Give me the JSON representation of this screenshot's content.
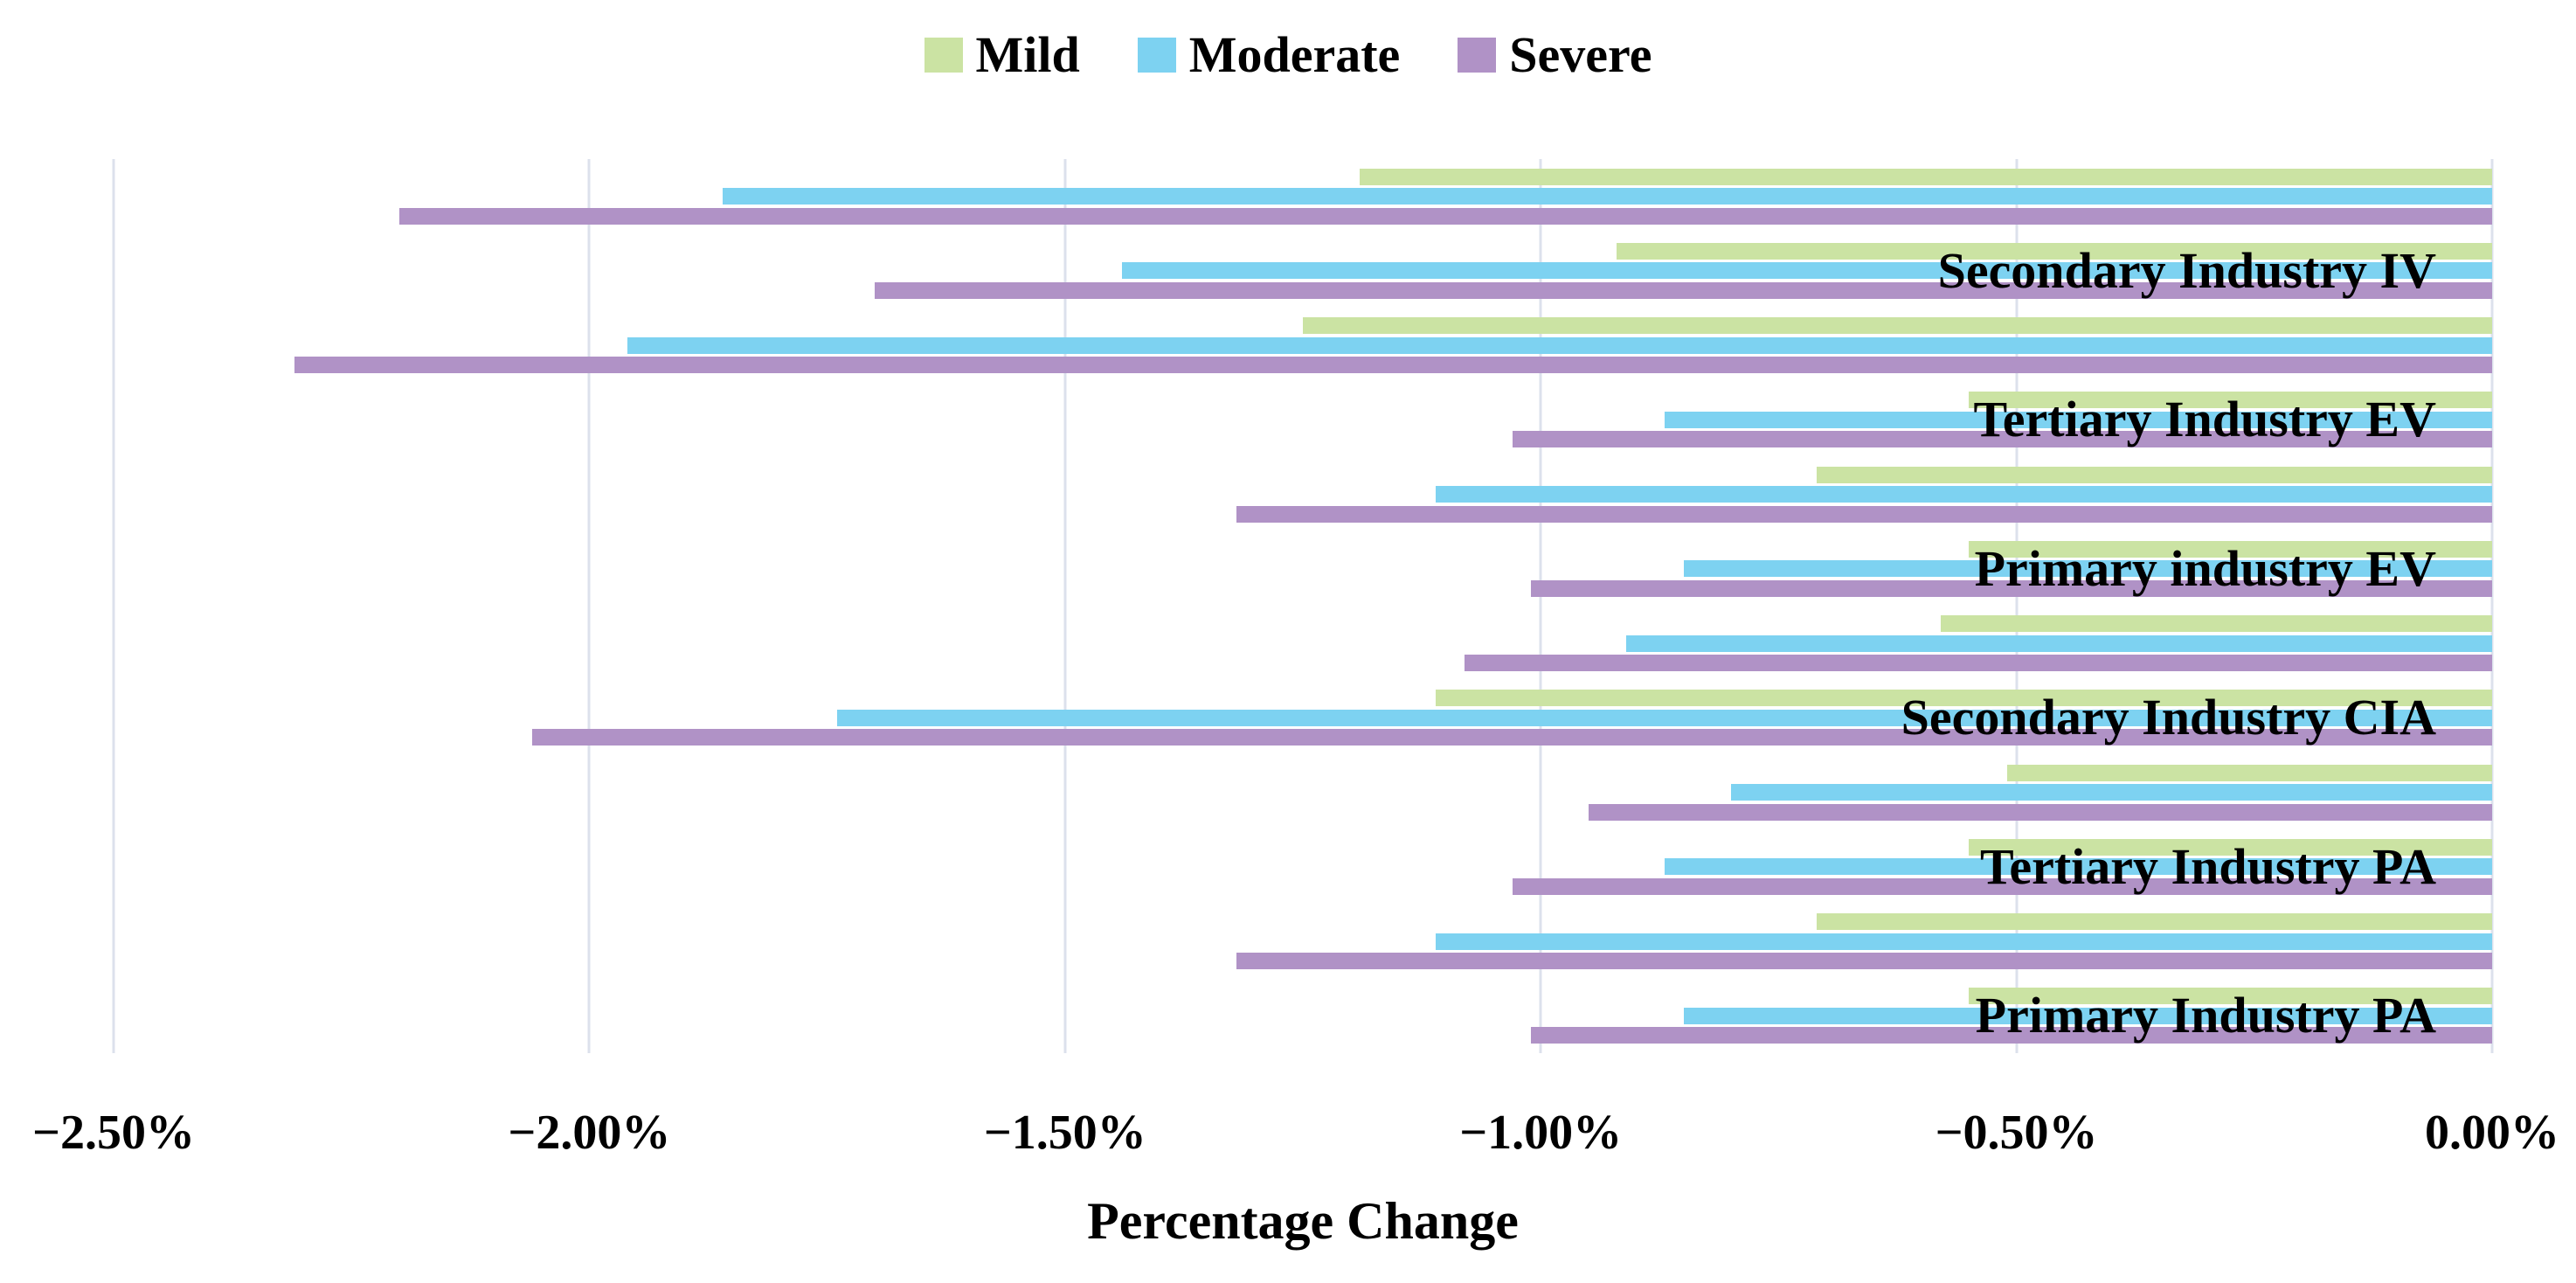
{
  "chart_data": {
    "type": "bar",
    "orientation": "horizontal",
    "xlabel": "Percentage Change",
    "grid": "vertical-on",
    "legend_position": "top-center",
    "x_axis": {
      "min": -2.5,
      "max": 0,
      "tick_step": 0.5,
      "tick_labels": [
        "−2.50%",
        "−2.00%",
        "−1.50%",
        "−1.00%",
        "−0.50%",
        "0.00%"
      ]
    },
    "series": [
      {
        "name": "Mild",
        "color": "#cbe3a3"
      },
      {
        "name": "Moderate",
        "color": "#7dd2f1"
      },
      {
        "name": "Severe",
        "color": "#b092c6"
      }
    ],
    "groups": [
      {
        "label": "",
        "values": [
          -1.19,
          -1.86,
          -2.2
        ]
      },
      {
        "label": "Secondary Industry IV",
        "values": [
          -0.92,
          -1.44,
          -1.7
        ]
      },
      {
        "label": "",
        "values": [
          -1.25,
          -1.96,
          -2.31
        ]
      },
      {
        "label": "Tertiary Industry EV",
        "values": [
          -0.55,
          -0.87,
          -1.03
        ]
      },
      {
        "label": "",
        "values": [
          -0.71,
          -1.11,
          -1.32
        ]
      },
      {
        "label": "Primary industry EV",
        "values": [
          -0.55,
          -0.85,
          -1.01
        ]
      },
      {
        "label": "",
        "values": [
          -0.58,
          -0.91,
          -1.08
        ]
      },
      {
        "label": "Secondary Industry CIA",
        "values": [
          -1.11,
          -1.74,
          -2.06
        ]
      },
      {
        "label": "",
        "values": [
          -0.51,
          -0.8,
          -0.95
        ]
      },
      {
        "label": "Tertiary Industry PA",
        "values": [
          -0.55,
          -0.87,
          -1.03
        ]
      },
      {
        "label": "",
        "values": [
          -0.71,
          -1.11,
          -1.32
        ]
      },
      {
        "label": "Primary Industry PA",
        "values": [
          -0.55,
          -0.85,
          -1.01
        ]
      }
    ]
  },
  "styles": {
    "gridline_color": "#dce1ec",
    "text_color": "#000000",
    "background": "#ffffff"
  }
}
